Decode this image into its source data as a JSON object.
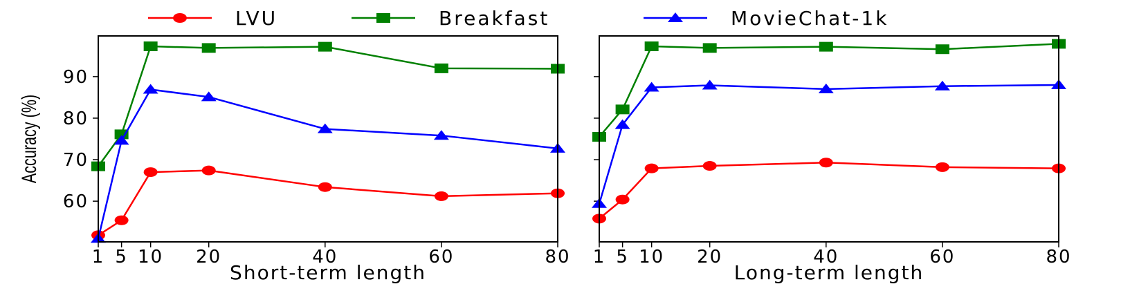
{
  "legend": {
    "entries": [
      {
        "label": "LVU",
        "color": "#ff0000",
        "marker": "circle"
      },
      {
        "label": "Breakfast",
        "color": "#008000",
        "marker": "square"
      },
      {
        "label": "MovieChat-1k",
        "color": "#0000ff",
        "marker": "triangle"
      }
    ]
  },
  "chart_data": [
    {
      "type": "line",
      "title": "",
      "xlabel": "Short-term length",
      "ylabel": "Accuracy (%)",
      "x": [
        1,
        5,
        10,
        20,
        40,
        60,
        80
      ],
      "x_tick_labels": [
        "1",
        "5",
        "10",
        "20",
        "40",
        "60",
        "80"
      ],
      "y_tick_labels": [
        "60",
        "70",
        "80",
        "90"
      ],
      "xlim": [
        1,
        80
      ],
      "ylim": [
        50.2,
        99.8
      ],
      "grid": false,
      "legend_position": "top-center (shared)",
      "series": [
        {
          "name": "LVU",
          "color": "#ff0000",
          "marker": "circle",
          "values": [
            51.8,
            55.4,
            67.0,
            67.4,
            63.4,
            61.2,
            61.9
          ]
        },
        {
          "name": "Breakfast",
          "color": "#008000",
          "marker": "square",
          "values": [
            68.4,
            76.1,
            97.3,
            96.9,
            97.2,
            92.0,
            91.9
          ]
        },
        {
          "name": "MovieChat-1k",
          "color": "#0000ff",
          "marker": "triangle",
          "values": [
            51.0,
            74.6,
            86.9,
            85.1,
            77.4,
            75.8,
            72.7
          ]
        }
      ]
    },
    {
      "type": "line",
      "title": "",
      "xlabel": "Long-term length",
      "ylabel": "",
      "x": [
        1,
        5,
        10,
        20,
        40,
        60,
        80
      ],
      "x_tick_labels": [
        "1",
        "5",
        "10",
        "20",
        "40",
        "60",
        "80"
      ],
      "y_tick_labels": [],
      "xlim": [
        1,
        80
      ],
      "ylim": [
        50.2,
        99.8
      ],
      "grid": false,
      "legend_position": "top-center (shared)",
      "series": [
        {
          "name": "LVU",
          "color": "#ff0000",
          "marker": "circle",
          "values": [
            55.8,
            60.4,
            67.9,
            68.5,
            69.3,
            68.2,
            67.9
          ]
        },
        {
          "name": "Breakfast",
          "color": "#008000",
          "marker": "square",
          "values": [
            75.5,
            82.1,
            97.3,
            96.9,
            97.2,
            96.6,
            97.9
          ]
        },
        {
          "name": "MovieChat-1k",
          "color": "#0000ff",
          "marker": "triangle",
          "values": [
            59.4,
            78.4,
            87.4,
            87.9,
            87.0,
            87.7,
            88.0
          ]
        }
      ]
    }
  ]
}
